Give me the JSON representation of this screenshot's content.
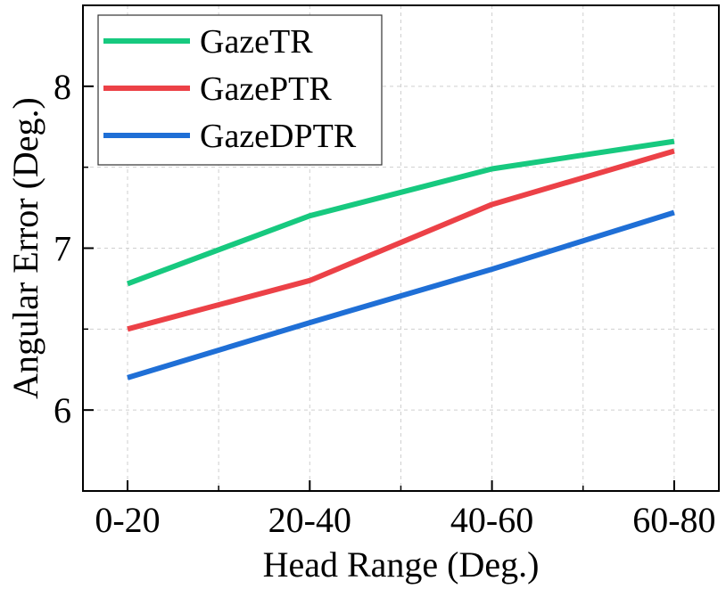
{
  "chart_data": {
    "type": "line",
    "categories": [
      "0-20",
      "20-40",
      "40-60",
      "60-80"
    ],
    "series": [
      {
        "name": "GazeTR",
        "values": [
          6.78,
          7.2,
          7.49,
          7.66
        ],
        "color": "#17c97f"
      },
      {
        "name": "GazePTR",
        "values": [
          6.5,
          6.8,
          7.27,
          7.6
        ],
        "color": "#ec4147"
      },
      {
        "name": "GazeDPTR",
        "values": [
          6.2,
          6.54,
          6.87,
          7.22
        ],
        "color": "#1f6fd6"
      }
    ],
    "xlabel": "Head Range (Deg.)",
    "ylabel": "Angular Error (Deg.)",
    "ylim": [
      5.5,
      8.5
    ],
    "yticks": [
      6,
      7,
      8
    ],
    "grid": true,
    "legend_position": "top-left"
  }
}
